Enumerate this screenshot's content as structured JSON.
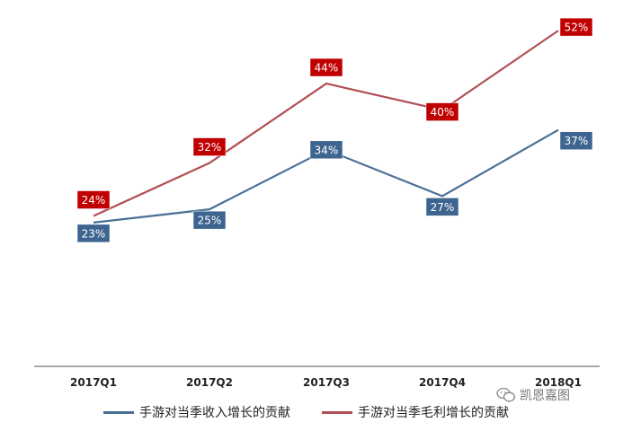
{
  "chart_data": {
    "type": "line",
    "title": "",
    "xlabel": "",
    "ylabel": "",
    "categories": [
      "2017Q1",
      "2017Q2",
      "2017Q3",
      "2017Q4",
      "2018Q1"
    ],
    "ylim": [
      0,
      60
    ],
    "grid": false,
    "legend_position": "bottom",
    "series": [
      {
        "name": "手游对当季收入增长的贡献",
        "values": [
          23,
          25,
          34,
          27,
          37
        ],
        "labels": [
          "23%",
          "25%",
          "34%",
          "27%",
          "37%"
        ],
        "color": "#4a6f97",
        "label_bg": "#3d6590"
      },
      {
        "name": "手游对当季毛利增长的贡献",
        "values": [
          24,
          32,
          44,
          40,
          52
        ],
        "labels": [
          "24%",
          "32%",
          "44%",
          "40%",
          "52%"
        ],
        "color": "#b05055",
        "label_bg": "#c00000"
      }
    ]
  },
  "watermark": {
    "text": "凯恩嘉图",
    "icon": "wechat-icon"
  }
}
